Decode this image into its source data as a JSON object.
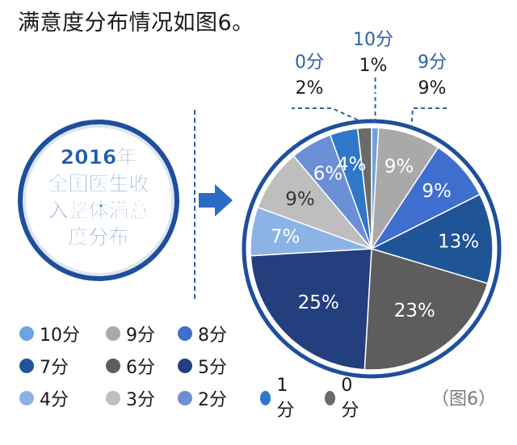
{
  "page": {
    "title": "满意度分布情况如图6。",
    "figure_label": "（图6）"
  },
  "badge": {
    "lines": [
      "2016年",
      "全国医生收",
      "入整体满意",
      "度分布"
    ]
  },
  "chart_data": {
    "type": "pie",
    "labels": [
      "10分",
      "9分",
      "8分",
      "7分",
      "6分",
      "5分",
      "4分",
      "3分",
      "2分",
      "1分",
      "0分"
    ],
    "values": [
      1,
      9,
      9,
      13,
      23,
      25,
      7,
      9,
      6,
      4,
      2
    ],
    "value_labels": [
      "1%",
      "9%",
      "9%",
      "13%",
      "23%",
      "25%",
      "7%",
      "9%",
      "6%",
      "4%",
      "2%"
    ],
    "colors": [
      "#6fa3df",
      "#a9a9a9",
      "#3f6fce",
      "#1f5496",
      "#5d5d5e",
      "#233f7d",
      "#8cb3e6",
      "#bebebe",
      "#6c8ed4",
      "#2f78c8",
      "#6a6a6a"
    ],
    "callouts": [
      {
        "category": "10分",
        "percent": "1%"
      },
      {
        "category": "9分",
        "percent": "9%"
      },
      {
        "category": "0分",
        "percent": "2%"
      }
    ],
    "legend_placement": "bottom-left"
  }
}
